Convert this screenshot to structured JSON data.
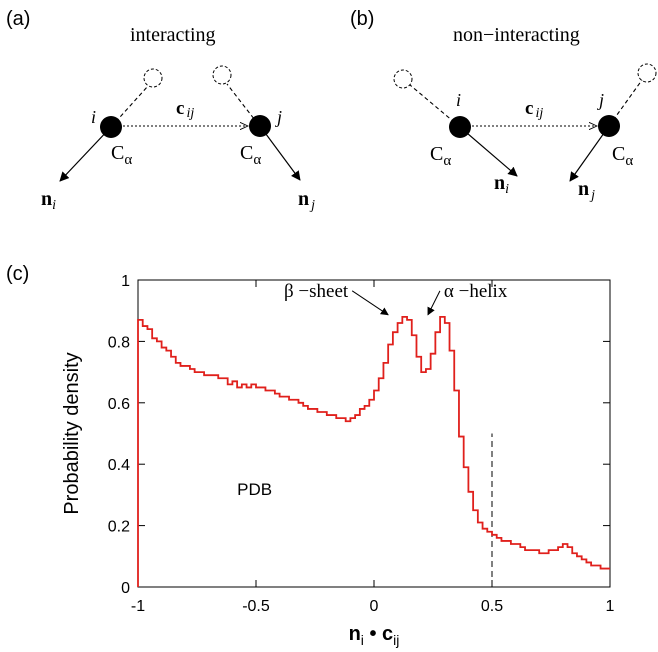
{
  "panel_a": {
    "tag": "(a)",
    "title": "interacting",
    "label_i": "i",
    "label_j": "j",
    "c_bold": "c",
    "c_sub": "ij",
    "calpha_C": "C",
    "calpha_sub": "α",
    "n_bold": "n",
    "n_sub_i": "i",
    "n_sub_j": "j"
  },
  "panel_b": {
    "tag": "(b)",
    "title": "non−interacting",
    "label_i": "i",
    "label_j": "j",
    "c_bold": "c",
    "c_sub": "ij",
    "calpha_C": "C",
    "calpha_sub": "α",
    "n_bold": "n",
    "n_sub_i": "i",
    "n_sub_j": "j"
  },
  "panel_c": {
    "tag": "(c)"
  },
  "chart_data": {
    "type": "line",
    "style": "step histogram",
    "series_color": "#e0201c",
    "ylabel": "Probability density",
    "xlabel_main": "n",
    "xlabel_sub1": "i",
    "xlabel_dot": " • ",
    "xlabel_main2": "c",
    "xlabel_sub2": "ij",
    "xlim": [
      -1,
      1
    ],
    "ylim": [
      0,
      1
    ],
    "x_ticks": [
      "-1",
      "-0.5",
      "0",
      "0.5",
      "1"
    ],
    "y_ticks": [
      "0",
      "0.2",
      "0.4",
      "0.6",
      "0.8",
      "1"
    ],
    "grid": false,
    "dashed_vertical_line": {
      "x": 0.5,
      "y_top": 0.5
    },
    "inner_label": "PDB",
    "annotations": [
      {
        "text": "β −sheet",
        "x": 0.06,
        "y": 0.88
      },
      {
        "text": "α −helix",
        "x": 0.22,
        "y": 0.88
      }
    ],
    "bin_width": 0.02,
    "bin_start": -1,
    "values": [
      0.87,
      0.85,
      0.84,
      0.81,
      0.8,
      0.78,
      0.77,
      0.75,
      0.73,
      0.72,
      0.72,
      0.71,
      0.7,
      0.7,
      0.69,
      0.69,
      0.69,
      0.68,
      0.68,
      0.66,
      0.67,
      0.65,
      0.66,
      0.65,
      0.66,
      0.65,
      0.65,
      0.64,
      0.64,
      0.63,
      0.62,
      0.62,
      0.61,
      0.61,
      0.6,
      0.59,
      0.58,
      0.58,
      0.57,
      0.57,
      0.56,
      0.56,
      0.55,
      0.55,
      0.54,
      0.55,
      0.56,
      0.58,
      0.59,
      0.61,
      0.64,
      0.68,
      0.73,
      0.79,
      0.83,
      0.86,
      0.88,
      0.87,
      0.82,
      0.75,
      0.7,
      0.71,
      0.76,
      0.83,
      0.88,
      0.86,
      0.77,
      0.64,
      0.49,
      0.39,
      0.31,
      0.25,
      0.21,
      0.19,
      0.18,
      0.17,
      0.16,
      0.15,
      0.15,
      0.14,
      0.14,
      0.13,
      0.12,
      0.12,
      0.12,
      0.11,
      0.11,
      0.12,
      0.12,
      0.13,
      0.14,
      0.13,
      0.11,
      0.1,
      0.09,
      0.08,
      0.07,
      0.07,
      0.06,
      0.06
    ]
  }
}
